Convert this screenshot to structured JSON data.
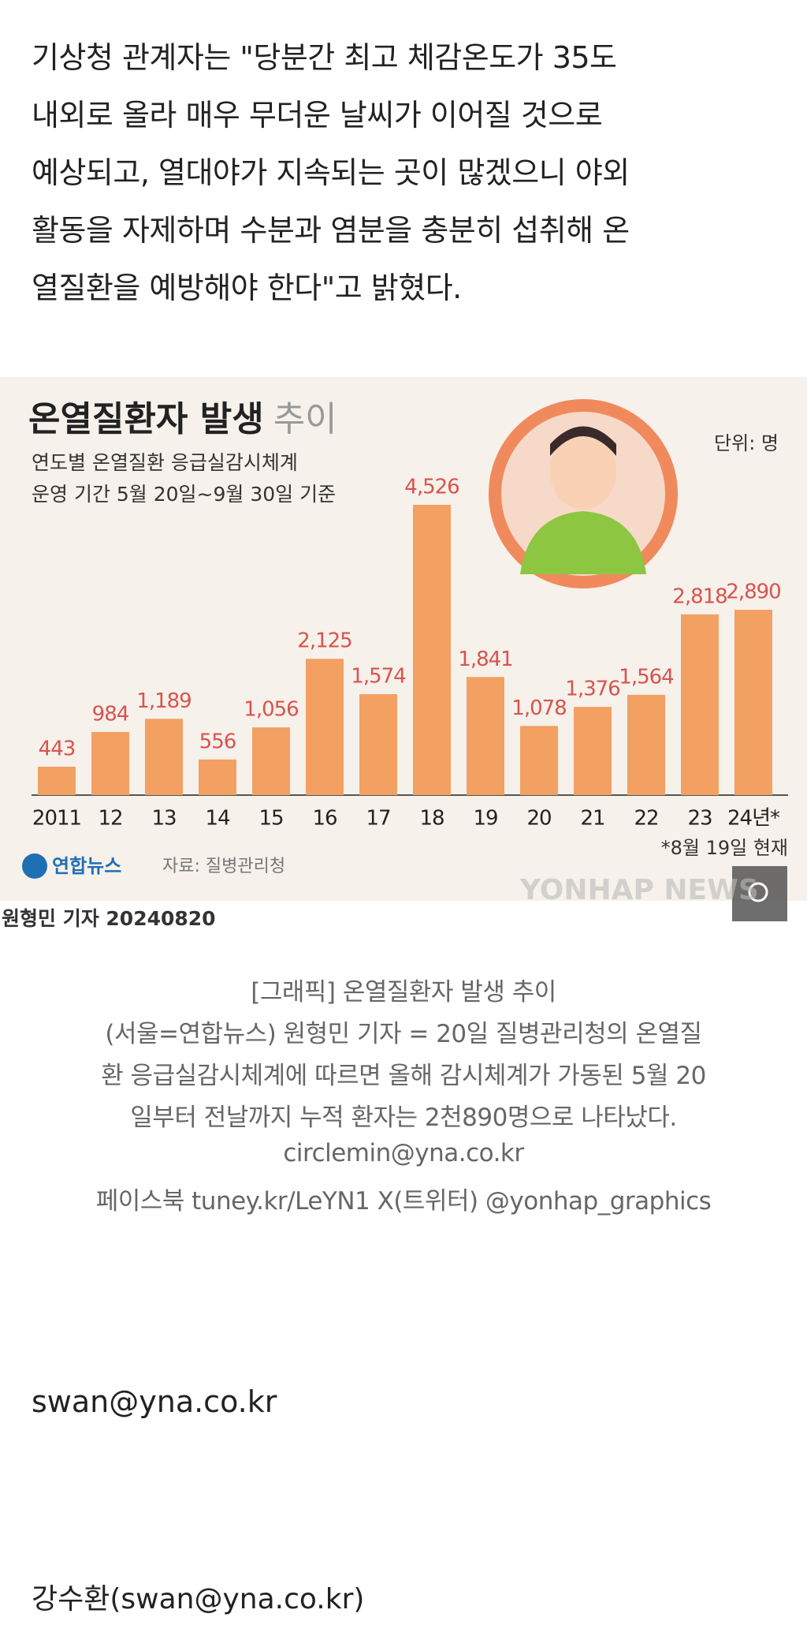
{
  "article": {
    "lines": [
      "기상청 관계자는 \"당분간 최고 체감온도가 35도",
      "내외로 올라 매우 무더운 날씨가 이어질 것으로",
      "예상되고, 열대야가 지속되는 곳이 많겠으니 야외",
      "활동을 자제하며 수분과 염분을 충분히 섭취해 온",
      "열질환을 예방해야 한다\"고 밝혔다."
    ]
  },
  "graphic": {
    "title": "온열질환자 발생",
    "title_light": "추이",
    "subtitle": [
      "연도별 온열질환 응급실감시체계",
      "운영 기간 5월 20일~9월 30일 기준"
    ],
    "unit": "단위: 명",
    "categories": [
      "2011",
      "12",
      "13",
      "14",
      "15",
      "16",
      "17",
      "18",
      "19",
      "20",
      "21",
      "22",
      "23",
      "24년*"
    ],
    "values": [
      443,
      984,
      1189,
      556,
      1056,
      2125,
      1574,
      4526,
      1841,
      1078,
      1376,
      1564,
      2818,
      2890
    ],
    "value_labels": [
      "443",
      "984",
      "1,189",
      "556",
      "1,056",
      "2,125",
      "1,574",
      "4,526",
      "1,841",
      "1,078",
      "1,376",
      "1,564",
      "2,818",
      "2,890"
    ],
    "bar_color": "#f3a063",
    "label_color": "#d9534f",
    "note": "*8월 19일 현재",
    "logo": "연합뉴스",
    "source": "자료: 질병관리청",
    "watermark": "YONHAP NEWS",
    "byline": "원형민 기자 20240820"
  },
  "caption": {
    "lines": [
      "[그래픽] 온열질환자 발생 추이",
      "(서울=연합뉴스) 원형민 기자 = 20일 질병관리청의 온열질",
      "환 응급실감시체계에 따르면 올해 감시체계가 가동된 5월 20",
      "일부터 전날까지 누적 환자는 2천890명으로 나타났다.",
      "circlemin@yna.co.kr",
      "페이스북 tuney.kr/LeYN1 X(트위터) @yonhap_graphics"
    ]
  },
  "footer": {
    "email": "swan@yna.co.kr",
    "reporter": "강수환(swan@yna.co.kr)"
  }
}
